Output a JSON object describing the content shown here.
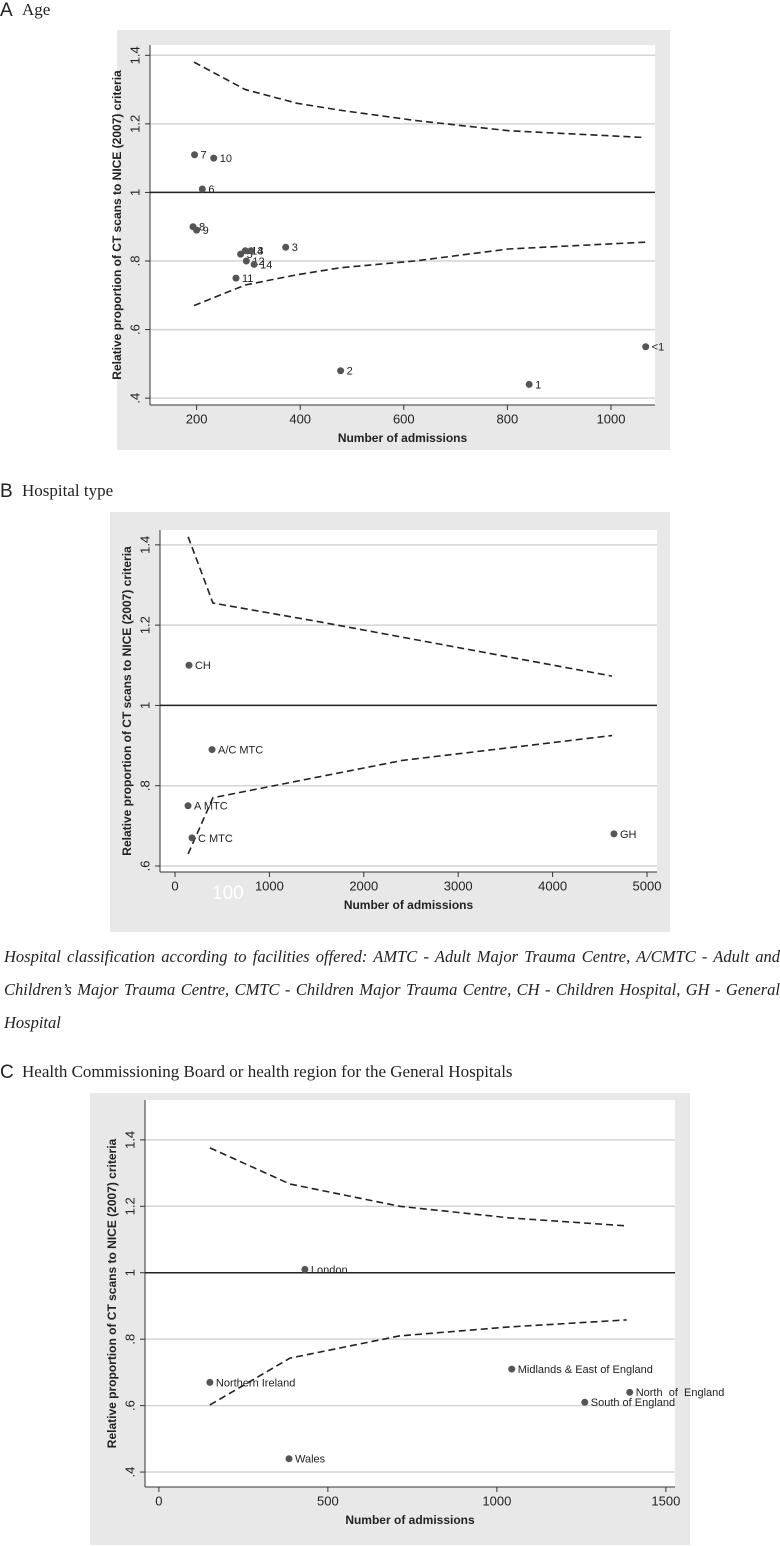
{
  "chart_data": [
    {
      "type": "scatter",
      "panel": "A",
      "title": "Age",
      "xlabel": "Number of admissions",
      "ylabel": "Relative proportion of CT scans to NICE (2007) criteria",
      "xlim": [
        110,
        1085
      ],
      "ylim": [
        0.38,
        1.43
      ],
      "xticks": [
        200,
        400,
        600,
        800,
        1000
      ],
      "yticks": [
        {
          "value": 0.4,
          "label": ".4"
        },
        {
          "value": 0.6,
          "label": ".6"
        },
        {
          "value": 0.8,
          "label": ".8"
        },
        1,
        1.2,
        1.4
      ],
      "reference_line": 1,
      "grid": true,
      "color": "#555555",
      "point_labels": [
        "7",
        "10",
        "6",
        "8",
        "9",
        "5",
        "13",
        "4",
        "12",
        "14",
        "11",
        "3",
        "2",
        "1",
        "<1"
      ],
      "x": [
        196,
        233,
        211,
        193,
        200,
        285,
        294,
        305,
        296,
        311,
        276,
        372,
        478,
        842,
        1067
      ],
      "values": [
        1.11,
        1.1,
        1.01,
        0.9,
        0.89,
        0.82,
        0.83,
        0.83,
        0.8,
        0.79,
        0.75,
        0.84,
        0.48,
        0.44,
        0.55
      ],
      "upper_limit": {
        "x": [
          195,
          294,
          394,
          476,
          621,
          802,
          1066
        ],
        "values": [
          1.38,
          1.3,
          1.26,
          1.24,
          1.21,
          1.18,
          1.16
        ]
      },
      "lower_limit": {
        "x": [
          195,
          294,
          394,
          476,
          621,
          802,
          1066
        ],
        "values": [
          0.67,
          0.73,
          0.76,
          0.78,
          0.8,
          0.835,
          0.855
        ]
      }
    },
    {
      "type": "scatter",
      "panel": "B",
      "title": "Hospital type",
      "xlabel": "Number of admissions",
      "ylabel": "Relative proportion of CT scans to NICE (2007) criteria",
      "xlim": [
        -159,
        5106
      ],
      "ylim": [
        0.585,
        1.437
      ],
      "xticks": [
        0,
        1000,
        2000,
        3000,
        4000,
        5000
      ],
      "yticks": [
        {
          "value": 0.6,
          "label": ".6"
        },
        {
          "value": 0.8,
          "label": ".8"
        },
        1,
        1.2,
        1.4
      ],
      "reference_line": 1,
      "grid": true,
      "color": "#555555",
      "point_labels": [
        "CH",
        "A/C MTC",
        "A MTC",
        "C MTC",
        "GH"
      ],
      "x": [
        148,
        392,
        138,
        180,
        4650
      ],
      "values": [
        1.1,
        0.89,
        0.75,
        0.67,
        0.68
      ],
      "upper_limit": {
        "x": [
          139,
          402,
          1536,
          4630
        ],
        "values": [
          1.42,
          1.255,
          1.208,
          1.073
        ]
      },
      "lower_limit": {
        "x": [
          139,
          402,
          2409,
          4630
        ],
        "values": [
          0.63,
          0.77,
          0.863,
          0.925
        ]
      },
      "annotations": [
        {
          "text": "100",
          "x": 560,
          "y": 0.53
        }
      ],
      "note": "Hospital classification according to facilities offered: AMTC - Adult Major Trauma Centre, A/CMTC - Adult and Children’s Major Trauma Centre, CMTC - Children Major Trauma Centre, CH - Children Hospital, GH - General Hospital"
    },
    {
      "type": "scatter",
      "panel": "C",
      "title": "Health Commissioning Board or health region for the General Hospitals",
      "xlabel": "Number of admissions",
      "ylabel": "Relative proportion of CT scans to NICE (2007) criteria",
      "xlim": [
        -41,
        1527
      ],
      "ylim": [
        0.355,
        1.52
      ],
      "xticks": [
        0,
        500,
        1000,
        1500
      ],
      "yticks": [
        {
          "value": 0.4,
          "label": ".4"
        },
        {
          "value": 0.6,
          "label": ".6"
        },
        {
          "value": 0.8,
          "label": ".8"
        },
        1,
        1.2,
        1.4
      ],
      "reference_line": 1,
      "grid": true,
      "color": "#555555",
      "point_labels": [
        "London",
        "Northern Ireland",
        "Midlands & East of England",
        "North  of  England",
        "South of England",
        "Wales"
      ],
      "x": [
        432,
        151,
        1044,
        1393,
        1260,
        385
      ],
      "values": [
        1.01,
        0.67,
        0.71,
        0.64,
        0.61,
        0.44
      ],
      "upper_limit": {
        "x": [
          151,
          388,
          713,
          1038,
          1384
        ],
        "values": [
          1.376,
          1.267,
          1.2,
          1.165,
          1.141
        ]
      },
      "lower_limit": {
        "x": [
          151,
          388,
          713,
          1038,
          1384
        ],
        "values": [
          0.602,
          0.743,
          0.81,
          0.837,
          0.858
        ]
      }
    }
  ]
}
